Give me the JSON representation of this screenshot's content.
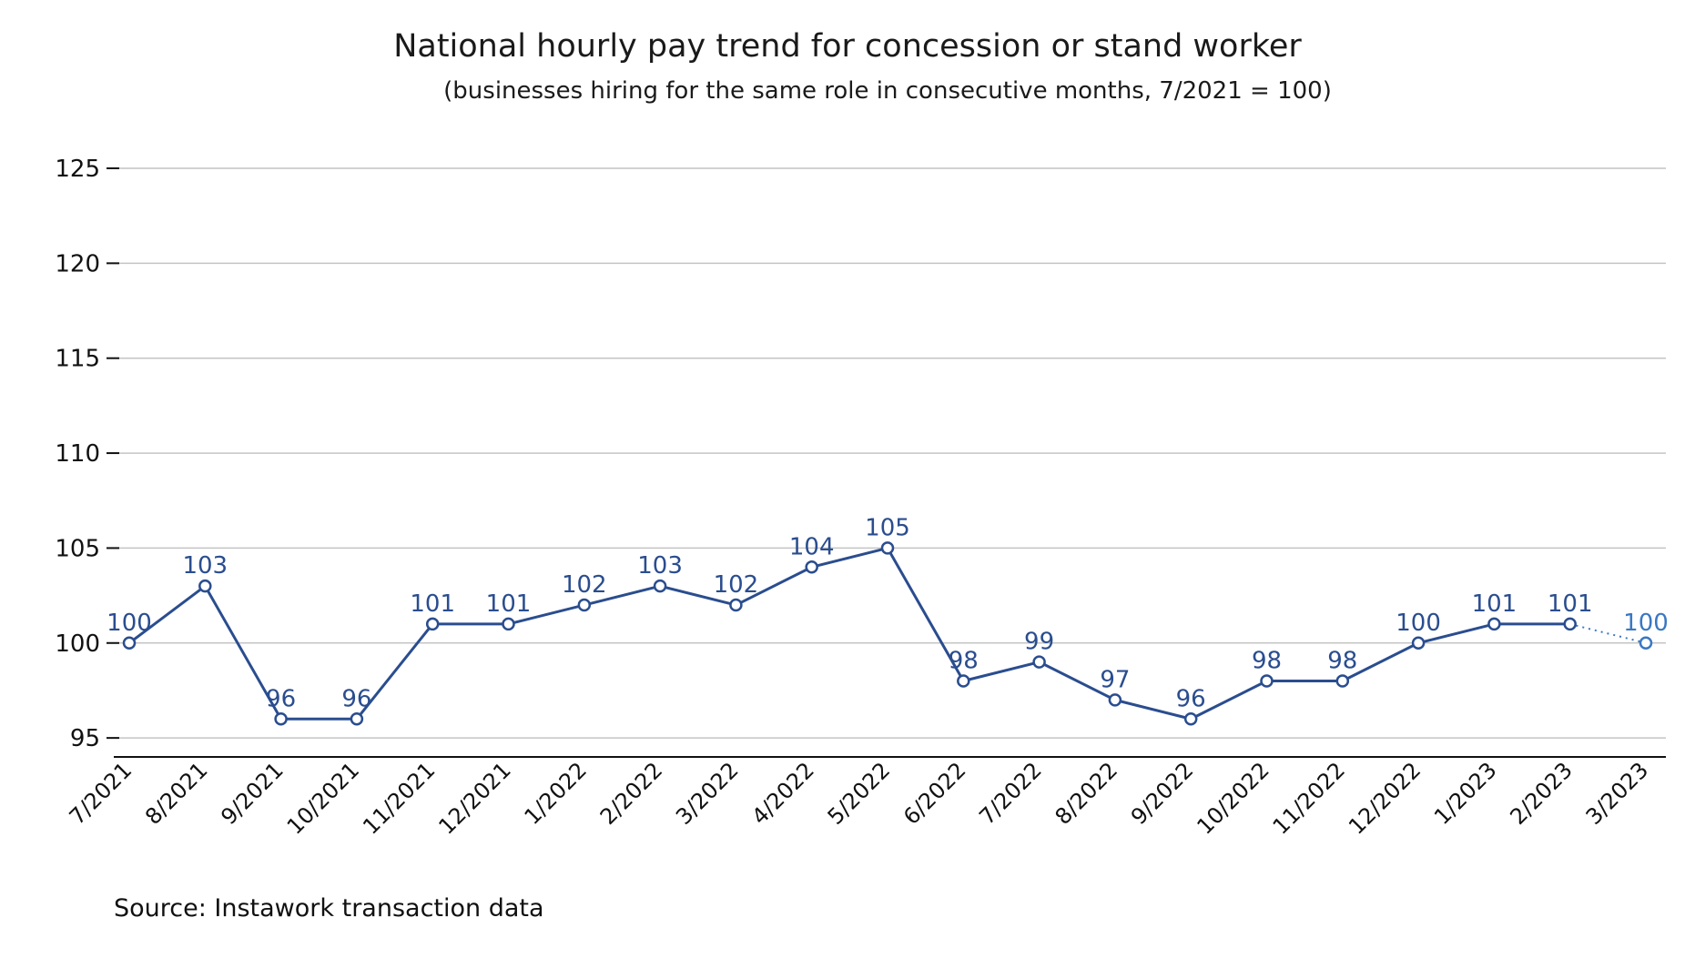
{
  "chart_data": {
    "type": "line",
    "title": "National hourly pay trend for concession or stand worker",
    "subtitle": "(businesses hiring for the same role in consecutive months, 7/2021 = 100)",
    "source": "Source: Instawork transaction data",
    "categories": [
      "7/2021",
      "8/2021",
      "9/2021",
      "10/2021",
      "11/2021",
      "12/2021",
      "1/2022",
      "2/2022",
      "3/2022",
      "4/2022",
      "5/2022",
      "6/2022",
      "7/2022",
      "8/2022",
      "9/2022",
      "10/2022",
      "11/2022",
      "12/2022",
      "1/2023",
      "2/2023",
      "3/2023"
    ],
    "series": [
      {
        "values": [
          100,
          103,
          96,
          96,
          101,
          101,
          102,
          103,
          102,
          104,
          105,
          98,
          99,
          97,
          96,
          98,
          98,
          100,
          101,
          101,
          100
        ],
        "labels": [
          "100",
          "103",
          "96",
          "96",
          "101",
          "101",
          "102",
          "103",
          "102",
          "104",
          "105",
          "98",
          "99",
          "97",
          "96",
          "98",
          "98",
          "100",
          "101",
          "101",
          "100"
        ],
        "color": "#2a4d8f",
        "projected_color": "#3a78c2",
        "projected_from_index": 19
      }
    ],
    "yticks": [
      "95",
      "100",
      "105",
      "110",
      "115",
      "120",
      "125"
    ],
    "ylim": [
      94,
      125
    ],
    "grid": true,
    "legend": "none"
  }
}
